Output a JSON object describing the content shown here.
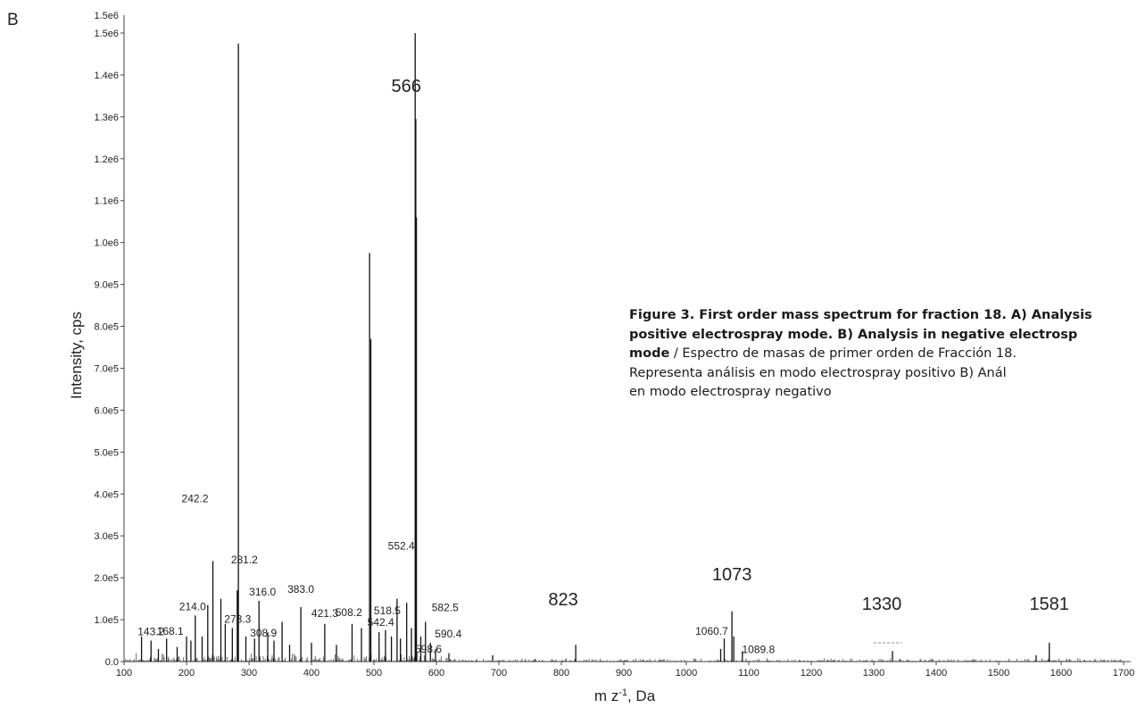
{
  "panel_letter": "B",
  "caption": {
    "line1": "Figure 3. First order mass spectrum for fraction 18. A) Analysis",
    "line2": "positive electrospray mode. B) Analysis in negative electrosp",
    "line3_bold": "mode",
    "line3_rest": " / Espectro de masas de primer orden de Fracción 18.",
    "line4": "Representa análisis en modo electrospray positivo B) Anál",
    "line5": "en modo electrospray negativo"
  },
  "chart_data": {
    "type": "line",
    "subtype": "mass spectrum (stick plot)",
    "xlabel": "m z⁻¹, Da",
    "ylabel": "Intensity, cps",
    "xlim": [
      100,
      1700
    ],
    "ylim": [
      0,
      1500000
    ],
    "x_ticks": [
      "100",
      "200",
      "300",
      "400",
      "500",
      "600",
      "700",
      "800",
      "900",
      "1000",
      "1100",
      "1200",
      "1300",
      "1400",
      "1500",
      "1600",
      "1700"
    ],
    "y_ticks": [
      "0.0",
      "1.0e5",
      "2.0e5",
      "3.0e5",
      "4.0e5",
      "5.0e5",
      "6.0e5",
      "7.0e5",
      "8.0e5",
      "9.0e5",
      "1.0e6",
      "1.1e6",
      "1.2e6",
      "1.3e6",
      "1.4e6",
      "1.5e6"
    ],
    "y_axis_top_label": "1.5e6",
    "grid": false,
    "line_color": "#111111",
    "peaks": [
      {
        "mz": 128,
        "intensity": 60000
      },
      {
        "mz": 143.2,
        "intensity": 50000
      },
      {
        "mz": 155,
        "intensity": 30000
      },
      {
        "mz": 168.1,
        "intensity": 55000
      },
      {
        "mz": 185,
        "intensity": 35000
      },
      {
        "mz": 200,
        "intensity": 60000
      },
      {
        "mz": 207,
        "intensity": 50000
      },
      {
        "mz": 214.0,
        "intensity": 110000
      },
      {
        "mz": 225,
        "intensity": 60000
      },
      {
        "mz": 234,
        "intensity": 135000
      },
      {
        "mz": 242.2,
        "intensity": 240000
      },
      {
        "mz": 255,
        "intensity": 150000
      },
      {
        "mz": 262,
        "intensity": 90000
      },
      {
        "mz": 273.3,
        "intensity": 80000
      },
      {
        "mz": 281.2,
        "intensity": 170000
      },
      {
        "mz": 283,
        "intensity": 1475000
      },
      {
        "mz": 295,
        "intensity": 60000
      },
      {
        "mz": 308.9,
        "intensity": 55000
      },
      {
        "mz": 316.0,
        "intensity": 145000
      },
      {
        "mz": 330,
        "intensity": 70000
      },
      {
        "mz": 340,
        "intensity": 50000
      },
      {
        "mz": 353,
        "intensity": 95000
      },
      {
        "mz": 365,
        "intensity": 40000
      },
      {
        "mz": 383.0,
        "intensity": 130000
      },
      {
        "mz": 400,
        "intensity": 45000
      },
      {
        "mz": 421.3,
        "intensity": 90000
      },
      {
        "mz": 440,
        "intensity": 40000
      },
      {
        "mz": 465,
        "intensity": 90000
      },
      {
        "mz": 480,
        "intensity": 80000
      },
      {
        "mz": 493,
        "intensity": 975000
      },
      {
        "mz": 495,
        "intensity": 770000
      },
      {
        "mz": 508.2,
        "intensity": 70000
      },
      {
        "mz": 518.5,
        "intensity": 75000
      },
      {
        "mz": 528,
        "intensity": 60000
      },
      {
        "mz": 537,
        "intensity": 150000
      },
      {
        "mz": 542.4,
        "intensity": 55000
      },
      {
        "mz": 552.4,
        "intensity": 140000
      },
      {
        "mz": 560,
        "intensity": 80000
      },
      {
        "mz": 566,
        "intensity": 1500000
      },
      {
        "mz": 567,
        "intensity": 1295000
      },
      {
        "mz": 568,
        "intensity": 1060000
      },
      {
        "mz": 575,
        "intensity": 60000
      },
      {
        "mz": 582.5,
        "intensity": 95000
      },
      {
        "mz": 590.4,
        "intensity": 45000
      },
      {
        "mz": 598.6,
        "intensity": 30000
      },
      {
        "mz": 620,
        "intensity": 20000
      },
      {
        "mz": 690,
        "intensity": 15000
      },
      {
        "mz": 823,
        "intensity": 40000
      },
      {
        "mz": 1055,
        "intensity": 30000
      },
      {
        "mz": 1060.7,
        "intensity": 55000
      },
      {
        "mz": 1073,
        "intensity": 120000
      },
      {
        "mz": 1076,
        "intensity": 60000
      },
      {
        "mz": 1089.8,
        "intensity": 25000
      },
      {
        "mz": 1330,
        "intensity": 25000
      },
      {
        "mz": 1560,
        "intensity": 15000
      },
      {
        "mz": 1581,
        "intensity": 45000
      }
    ],
    "peak_labels": [
      {
        "text": "143.2",
        "mz": 143.2,
        "intensity": 50000
      },
      {
        "text": "168.1",
        "mz": 168.1,
        "intensity": 55000
      },
      {
        "text": "214.0",
        "mz": 214.0,
        "intensity": 110000
      },
      {
        "text": "242.2",
        "mz": 242.2,
        "intensity": 240000
      },
      {
        "text": "273.3",
        "mz": 273.3,
        "intensity": 80000
      },
      {
        "text": "281.2",
        "mz": 281.2,
        "intensity": 170000
      },
      {
        "text": "308.9",
        "mz": 308.9,
        "intensity": 55000
      },
      {
        "text": "316.0",
        "mz": 316.0,
        "intensity": 145000
      },
      {
        "text": "383.0",
        "mz": 383.0,
        "intensity": 130000
      },
      {
        "text": "421.3",
        "mz": 421.3,
        "intensity": 90000
      },
      {
        "text": "508.2",
        "mz": 508.2,
        "intensity": 70000
      },
      {
        "text": "518.5",
        "mz": 518.5,
        "intensity": 75000
      },
      {
        "text": "542.4",
        "mz": 542.4,
        "intensity": 55000
      },
      {
        "text": "552.4",
        "mz": 552.4,
        "intensity": 140000
      },
      {
        "text": "582.5",
        "mz": 582.5,
        "intensity": 95000
      },
      {
        "text": "590.4",
        "mz": 590.4,
        "intensity": 45000
      },
      {
        "text": "598.6",
        "mz": 598.6,
        "intensity": 30000
      },
      {
        "text": "1060.7",
        "mz": 1060.7,
        "intensity": 55000
      },
      {
        "text": "1089.8",
        "mz": 1089.8,
        "intensity": 25000
      }
    ],
    "annotations": [
      {
        "text": "566",
        "mz": 566
      },
      {
        "text": "823",
        "mz": 823
      },
      {
        "text": "1073",
        "mz": 1073
      },
      {
        "text": "1330",
        "mz": 1330
      },
      {
        "text": "1581",
        "mz": 1581
      }
    ]
  }
}
